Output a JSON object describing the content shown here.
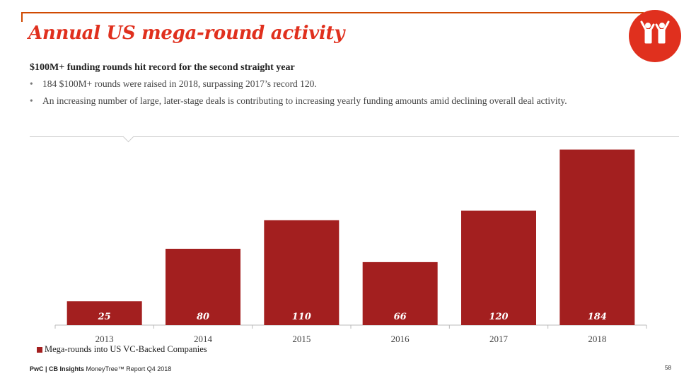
{
  "header": {
    "title": "Annual US mega-round activity",
    "subtitle": "$100M+ funding rounds hit record for the second straight year",
    "bullets": [
      "184 $100M+ rounds were raised in 2018, surpassing 2017’s record 120.",
      "An increasing number of large, later-stage deals is contributing to increasing yearly funding amounts amid declining overall deal activity."
    ],
    "bullet_symbol": "•"
  },
  "icon": {
    "name": "people-celebrating-icon",
    "color": "#e0301e"
  },
  "chart_data": {
    "type": "bar",
    "categories": [
      "2013",
      "2014",
      "2015",
      "2016",
      "2017",
      "2018"
    ],
    "series": [
      {
        "name": "Mega-rounds into US VC-Backed Companies",
        "values": [
          25,
          80,
          110,
          66,
          120,
          184
        ],
        "color": "#a31f1f"
      }
    ],
    "ylim": [
      0,
      200
    ],
    "legend": "bottom-left",
    "grid": false,
    "title": "",
    "xlabel": "",
    "ylabel": ""
  },
  "legend": {
    "label": "Mega-rounds into US VC-Backed Companies"
  },
  "footer": {
    "brand": "PwC | CB Insights",
    "report": " MoneyTree™ Report Q4 2018",
    "page_number": "58"
  }
}
